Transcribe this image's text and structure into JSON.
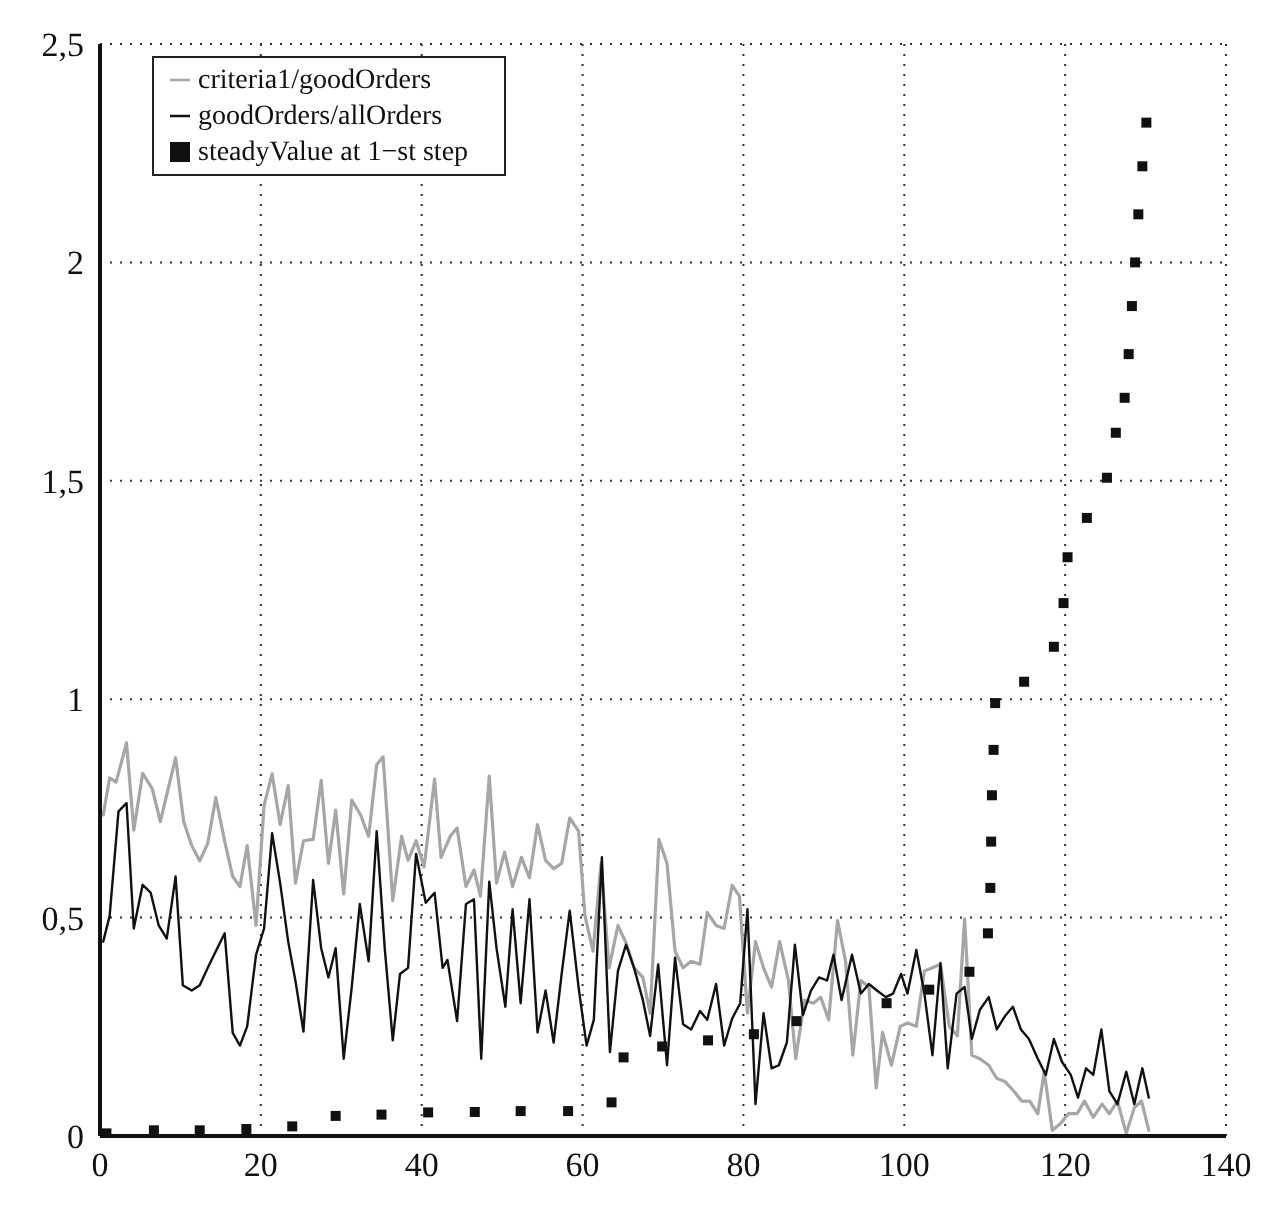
{
  "chart_data": {
    "type": "line",
    "xlim": [
      0,
      140
    ],
    "xticks": [
      0,
      20,
      40,
      60,
      80,
      100,
      120,
      140
    ],
    "ylim": [
      0,
      2.5
    ],
    "yticks": [
      0,
      {
        "value": 0.5,
        "label": "0,5"
      },
      1,
      {
        "value": 1.5,
        "label": "1,5"
      },
      2,
      {
        "value": 2.5,
        "label": "2,5"
      }
    ],
    "grid": true,
    "legend": "top left",
    "line_style": "solid",
    "series": [
      {
        "name": "criteria1/goodOrders",
        "color": "#a6a6a6",
        "marker": "none",
        "x": [
          0.4,
          1.2,
          2.0,
          3.3,
          4.2,
          5.3,
          6.5,
          7.5,
          9.4,
          10.4,
          11.4,
          12.4,
          13.4,
          14.4,
          15.5,
          16.5,
          17.4,
          18.3,
          19.4,
          20.4,
          21.4,
          22.4,
          23.4,
          24.3,
          25.3,
          26.5,
          27.5,
          28.4,
          29.3,
          30.3,
          31.3,
          32.4,
          33.4,
          34.4,
          35.2,
          36.4,
          37.5,
          38.3,
          39.3,
          40.3,
          41.6,
          42.4,
          43.6,
          44.4,
          45.5,
          46.5,
          47.3,
          48.4,
          49.3,
          50.3,
          51.3,
          52.4,
          53.4,
          54.4,
          55.4,
          56.4,
          57.4,
          58.4,
          59.5,
          60.3,
          61.3,
          62.3,
          63.3,
          64.4,
          65.4,
          66.4,
          67.5,
          68.4,
          69.5,
          70.5,
          71.5,
          72.5,
          73.5,
          74.6,
          75.5,
          76.6,
          77.6,
          78.6,
          79.5,
          80.5,
          81.5,
          82.5,
          83.5,
          84.5,
          85.6,
          86.5,
          87.6,
          88.7,
          89.6,
          90.6,
          91.7,
          92.7,
          93.6,
          94.6,
          95.6,
          96.5,
          97.3,
          98.4,
          99.5,
          100.4,
          101.5,
          102.5,
          103.5,
          104.5,
          105.6,
          106.6,
          107.5,
          108.4,
          109.4,
          110.5,
          111.5,
          112.5,
          113.6,
          114.6,
          115.6,
          116.6,
          117.4,
          118.4,
          119.4,
          120.4,
          121.5,
          122.4,
          123.5,
          124.6,
          125.5,
          126.5,
          127.6,
          128.6,
          129.5,
          130.4
        ],
        "values": [
          0.735,
          0.82,
          0.81,
          0.9,
          0.7,
          0.83,
          0.795,
          0.72,
          0.866,
          0.72,
          0.665,
          0.63,
          0.67,
          0.775,
          0.675,
          0.594,
          0.571,
          0.665,
          0.482,
          0.757,
          0.829,
          0.713,
          0.802,
          0.579,
          0.676,
          0.679,
          0.814,
          0.624,
          0.746,
          0.554,
          0.769,
          0.735,
          0.686,
          0.85,
          0.868,
          0.539,
          0.686,
          0.631,
          0.676,
          0.616,
          0.817,
          0.638,
          0.688,
          0.705,
          0.571,
          0.609,
          0.549,
          0.824,
          0.579,
          0.65,
          0.571,
          0.638,
          0.591,
          0.713,
          0.631,
          0.612,
          0.624,
          0.728,
          0.698,
          0.504,
          0.423,
          0.624,
          0.385,
          0.482,
          0.442,
          0.385,
          0.363,
          0.281,
          0.679,
          0.624,
          0.423,
          0.385,
          0.4,
          0.393,
          0.512,
          0.482,
          0.475,
          0.574,
          0.549,
          0.281,
          0.445,
          0.385,
          0.341,
          0.445,
          0.356,
          0.177,
          0.311,
          0.304,
          0.318,
          0.266,
          0.493,
          0.4,
          0.185,
          0.356,
          0.341,
          0.11,
          0.237,
          0.162,
          0.251,
          0.259,
          0.251,
          0.378,
          0.385,
          0.393,
          0.251,
          0.229,
          0.497,
          0.185,
          0.177,
          0.162,
          0.132,
          0.125,
          0.103,
          0.08,
          0.08,
          0.051,
          0.147,
          0.013,
          0.028,
          0.051,
          0.051,
          0.08,
          0.043,
          0.073,
          0.051,
          0.08,
          0.006,
          0.065,
          0.08,
          0.013
        ]
      },
      {
        "name": "goodOrders/allOrders",
        "color": "#111111",
        "marker": "none",
        "x": [
          0.4,
          1.2,
          2.3,
          3.3,
          4.2,
          5.3,
          6.3,
          7.3,
          8.3,
          9.4,
          10.3,
          11.4,
          12.4,
          13.4,
          14.4,
          15.5,
          16.5,
          17.4,
          18.3,
          19.4,
          20.4,
          21.4,
          22.4,
          23.4,
          24.3,
          25.3,
          26.5,
          27.5,
          28.4,
          29.3,
          30.3,
          31.3,
          32.3,
          33.4,
          34.4,
          35.4,
          36.4,
          37.3,
          38.3,
          39.3,
          40.5,
          41.6,
          42.6,
          43.2,
          44.4,
          45.5,
          46.5,
          47.4,
          48.4,
          49.3,
          50.4,
          51.3,
          52.3,
          53.4,
          54.4,
          55.4,
          56.4,
          57.4,
          58.4,
          59.5,
          60.5,
          61.4,
          62.4,
          63.4,
          64.4,
          65.4,
          66.4,
          67.5,
          68.4,
          69.4,
          70.5,
          71.5,
          72.5,
          73.5,
          74.6,
          75.5,
          76.6,
          77.6,
          78.6,
          79.6,
          80.5,
          81.5,
          82.5,
          83.5,
          84.4,
          85.4,
          86.4,
          87.4,
          88.4,
          89.4,
          90.4,
          91.2,
          92.2,
          93.5,
          94.6,
          95.6,
          96.6,
          97.7,
          98.6,
          99.6,
          100.4,
          101.5,
          102.5,
          103.5,
          104.5,
          105.4,
          106.5,
          107.5,
          108.4,
          109.4,
          110.5,
          111.5,
          112.5,
          113.5,
          114.5,
          115.5,
          116.6,
          117.6,
          118.6,
          119.6,
          120.7,
          121.6,
          122.6,
          123.5,
          124.5,
          125.5,
          126.5,
          127.6,
          128.6,
          129.6,
          130.4
        ],
        "values": [
          0.445,
          0.504,
          0.743,
          0.762,
          0.475,
          0.575,
          0.557,
          0.482,
          0.452,
          0.594,
          0.345,
          0.333,
          0.345,
          0.385,
          0.423,
          0.464,
          0.236,
          0.207,
          0.251,
          0.415,
          0.475,
          0.693,
          0.579,
          0.445,
          0.355,
          0.239,
          0.586,
          0.43,
          0.363,
          0.43,
          0.177,
          0.341,
          0.531,
          0.4,
          0.698,
          0.43,
          0.219,
          0.371,
          0.385,
          0.646,
          0.534,
          0.557,
          0.385,
          0.403,
          0.263,
          0.531,
          0.542,
          0.177,
          0.582,
          0.43,
          0.296,
          0.519,
          0.304,
          0.542,
          0.237,
          0.333,
          0.214,
          0.371,
          0.516,
          0.341,
          0.207,
          0.266,
          0.638,
          0.192,
          0.378,
          0.438,
          0.385,
          0.311,
          0.229,
          0.393,
          0.162,
          0.408,
          0.256,
          0.244,
          0.286,
          0.266,
          0.348,
          0.207,
          0.269,
          0.304,
          0.519,
          0.073,
          0.281,
          0.155,
          0.162,
          0.214,
          0.438,
          0.277,
          0.333,
          0.363,
          0.356,
          0.415,
          0.311,
          0.415,
          0.326,
          0.348,
          0.333,
          0.318,
          0.326,
          0.371,
          0.326,
          0.426,
          0.326,
          0.185,
          0.396,
          0.155,
          0.326,
          0.341,
          0.222,
          0.289,
          0.318,
          0.244,
          0.274,
          0.296,
          0.244,
          0.222,
          0.177,
          0.14,
          0.222,
          0.17,
          0.14,
          0.088,
          0.155,
          0.14,
          0.244,
          0.103,
          0.073,
          0.147,
          0.073,
          0.155,
          0.088
        ]
      },
      {
        "name": "steadyValue at 1−st step",
        "type": "scatter",
        "color": "#111111",
        "marker": "square",
        "x": [
          0.8,
          6.7,
          12.4,
          18.2,
          23.9,
          29.3,
          35,
          40.8,
          46.6,
          52.3,
          58.2,
          63.6,
          65.1,
          69.9,
          75.6,
          81.3,
          86.6,
          97.8,
          103.1,
          108.1,
          110.4,
          110.7,
          110.8,
          110.9,
          111.1,
          111.3,
          114.9,
          118.6,
          119.8,
          120.3,
          122.7,
          125.2,
          126.3,
          127.4,
          127.9,
          128.3,
          128.7,
          129.1,
          129.6,
          130.1
        ],
        "values": [
          0.006,
          0.013,
          0.013,
          0.016,
          0.022,
          0.046,
          0.049,
          0.054,
          0.055,
          0.057,
          0.057,
          0.077,
          0.18,
          0.205,
          0.219,
          0.233,
          0.263,
          0.304,
          0.335,
          0.376,
          0.464,
          0.568,
          0.674,
          0.78,
          0.884,
          0.991,
          1.04,
          1.12,
          1.22,
          1.325,
          1.415,
          1.507,
          1.61,
          1.69,
          1.79,
          1.9,
          2.0,
          2.11,
          2.22,
          2.32
        ]
      }
    ]
  }
}
